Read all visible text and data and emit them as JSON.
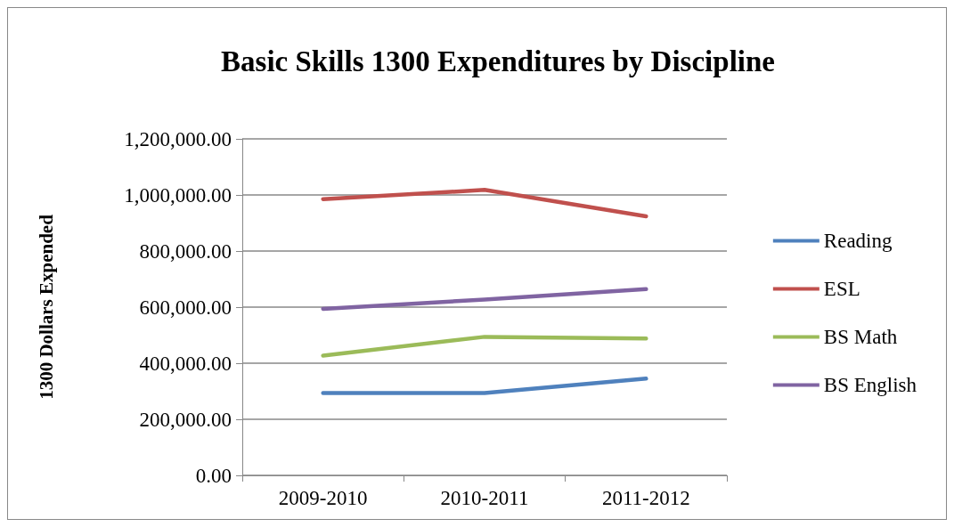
{
  "chart_data": {
    "type": "line",
    "title": "Basic Skills 1300 Expenditures by Discipline",
    "ylabel": "1300 Dollars Expended",
    "categories": [
      "2009-2010",
      "2010-2011",
      "2011-2012"
    ],
    "series": [
      {
        "name": "Reading",
        "color": "#4f81bd",
        "values": [
          294000,
          294000,
          345000
        ]
      },
      {
        "name": "ESL",
        "color": "#c0504d",
        "values": [
          985000,
          1018000,
          924000
        ]
      },
      {
        "name": "BS Math",
        "color": "#9bbb59",
        "values": [
          427000,
          494000,
          488000
        ]
      },
      {
        "name": "BS English",
        "color": "#8064a2",
        "values": [
          594000,
          627000,
          664000
        ]
      }
    ],
    "ylim": [
      0,
      1200000
    ],
    "yticks": [
      {
        "value": 0,
        "label": "0.00"
      },
      {
        "value": 200000,
        "label": "200,000.00"
      },
      {
        "value": 400000,
        "label": "400,000.00"
      },
      {
        "value": 600000,
        "label": "600,000.00"
      },
      {
        "value": 800000,
        "label": "800,000.00"
      },
      {
        "value": 1000000,
        "label": "1,000,000.00"
      },
      {
        "value": 1200000,
        "label": "1,200,000.00"
      }
    ],
    "grid": "y",
    "legend": "right",
    "marker": "none",
    "line_style": "solid"
  }
}
